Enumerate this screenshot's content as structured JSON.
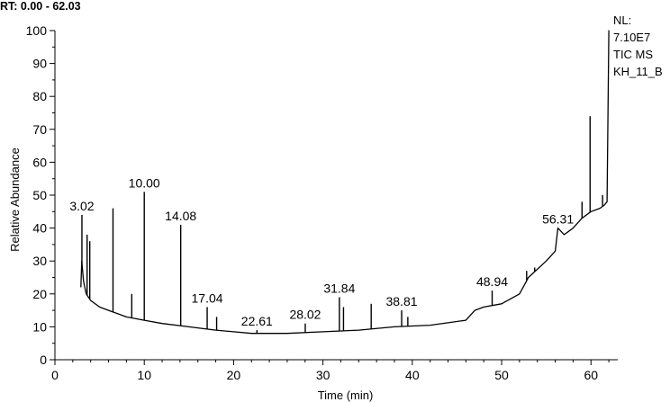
{
  "header": {
    "rt_range": "RT: 0.00 - 62.03"
  },
  "info": {
    "lines": [
      "NL:",
      "7.10E7",
      "TIC  MS",
      "KH_11_B"
    ]
  },
  "chart_data": {
    "type": "line",
    "title": "",
    "xlabel": "Time (min)",
    "ylabel": "Relative Abundance",
    "xlim": [
      0,
      63
    ],
    "ylim": [
      0,
      100
    ],
    "x_ticks": [
      0,
      10,
      20,
      30,
      40,
      50,
      60
    ],
    "y_ticks": [
      0,
      10,
      20,
      30,
      40,
      50,
      60,
      70,
      80,
      90,
      100
    ],
    "grid": false,
    "baseline": [
      [
        2.9,
        22
      ],
      [
        3.0,
        30
      ],
      [
        3.2,
        24
      ],
      [
        3.5,
        20
      ],
      [
        4.0,
        18
      ],
      [
        5.0,
        16
      ],
      [
        6.0,
        15
      ],
      [
        8.0,
        13
      ],
      [
        10.0,
        12
      ],
      [
        12.0,
        11
      ],
      [
        15.0,
        10
      ],
      [
        18.0,
        9
      ],
      [
        22.0,
        8
      ],
      [
        26.0,
        8
      ],
      [
        30.0,
        8.5
      ],
      [
        34.0,
        9
      ],
      [
        38.0,
        10
      ],
      [
        42.0,
        10.5
      ],
      [
        46.0,
        12
      ],
      [
        47.0,
        15
      ],
      [
        48.0,
        16
      ],
      [
        50.0,
        17
      ],
      [
        52.0,
        20
      ],
      [
        53.0,
        25
      ],
      [
        55.0,
        30
      ],
      [
        56.0,
        33
      ],
      [
        56.3,
        40
      ],
      [
        57.0,
        38
      ],
      [
        58.0,
        40
      ],
      [
        59.0,
        43
      ],
      [
        60.0,
        45
      ],
      [
        61.0,
        46
      ],
      [
        61.5,
        47
      ],
      [
        61.8,
        48
      ],
      [
        62.0,
        100
      ],
      [
        62.03,
        100
      ]
    ],
    "peaks": [
      [
        3.02,
        44
      ],
      [
        3.6,
        38
      ],
      [
        3.9,
        36
      ],
      [
        6.5,
        46
      ],
      [
        8.6,
        20
      ],
      [
        10.0,
        51
      ],
      [
        14.08,
        41
      ],
      [
        17.04,
        16
      ],
      [
        18.1,
        13
      ],
      [
        22.61,
        9
      ],
      [
        28.02,
        11
      ],
      [
        31.84,
        19
      ],
      [
        32.3,
        16
      ],
      [
        35.4,
        17
      ],
      [
        38.81,
        15
      ],
      [
        39.5,
        13
      ],
      [
        48.94,
        21
      ],
      [
        52.8,
        27
      ],
      [
        53.7,
        28
      ],
      [
        56.31,
        40
      ],
      [
        59.0,
        48
      ],
      [
        59.9,
        74
      ],
      [
        61.3,
        50
      ]
    ],
    "peak_labels": [
      {
        "x": 3.02,
        "y": 44,
        "text": "3.02"
      },
      {
        "x": 10.0,
        "y": 51,
        "text": "10.00"
      },
      {
        "x": 14.08,
        "y": 41,
        "text": "14.08"
      },
      {
        "x": 17.04,
        "y": 16,
        "text": "17.04"
      },
      {
        "x": 22.61,
        "y": 9,
        "text": "22.61"
      },
      {
        "x": 28.02,
        "y": 11,
        "text": "28.02"
      },
      {
        "x": 31.84,
        "y": 19,
        "text": "31.84"
      },
      {
        "x": 38.81,
        "y": 15,
        "text": "38.81"
      },
      {
        "x": 48.94,
        "y": 21,
        "text": "48.94"
      },
      {
        "x": 56.31,
        "y": 40,
        "text": "56.31"
      }
    ]
  }
}
